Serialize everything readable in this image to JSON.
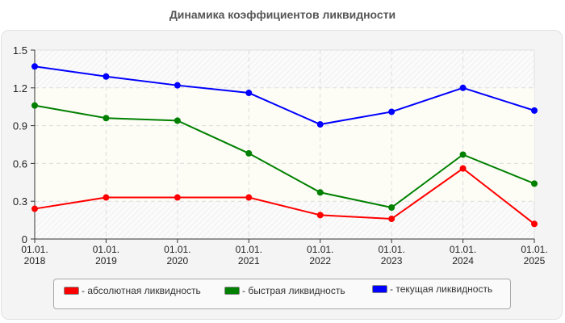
{
  "title": "Динамика коэффициентов ликвидности",
  "chart_data": {
    "type": "line",
    "title": "Динамика коэффициентов ликвидности",
    "xlabel": "",
    "ylabel": "",
    "categories": [
      "01.01. 2018",
      "01.01. 2019",
      "01.01. 2020",
      "01.01. 2021",
      "01.01. 2022",
      "01.01. 2023",
      "01.01. 2024",
      "01.01. 2025"
    ],
    "x_tick_line1": [
      "01.01.",
      "01.01.",
      "01.01.",
      "01.01.",
      "01.01.",
      "01.01.",
      "01.01.",
      "01.01."
    ],
    "x_tick_line2": [
      "2018",
      "2019",
      "2020",
      "2021",
      "2022",
      "2023",
      "2024",
      "2025"
    ],
    "y_ticks": [
      "0",
      "0.3",
      "0.6",
      "0.9",
      "1.2",
      "1.5"
    ],
    "ylim": [
      0,
      1.5
    ],
    "grid": true,
    "normal_band": [
      0.3,
      1.2
    ],
    "legend_position": "bottom",
    "series": [
      {
        "name": "- абсолютная ликвидность",
        "color": "#ff0000",
        "values": [
          0.24,
          0.33,
          0.33,
          0.33,
          0.19,
          0.16,
          0.56,
          0.12
        ]
      },
      {
        "name": "- быстрая ликвидность",
        "color": "#008000",
        "values": [
          1.06,
          0.96,
          0.94,
          0.68,
          0.37,
          0.25,
          0.67,
          0.44
        ]
      },
      {
        "name": "- текущая ликвидность",
        "color": "#0000ff",
        "values": [
          1.37,
          1.29,
          1.22,
          1.16,
          0.91,
          1.01,
          1.2,
          1.02
        ]
      }
    ]
  },
  "legend": {
    "items": [
      {
        "label": "- абсолютная ликвидность",
        "color": "#ff0000"
      },
      {
        "label": "- быстрая ликвидность",
        "color": "#008000"
      },
      {
        "label": "- текущая ликвидность",
        "color": "#0000ff"
      }
    ]
  }
}
